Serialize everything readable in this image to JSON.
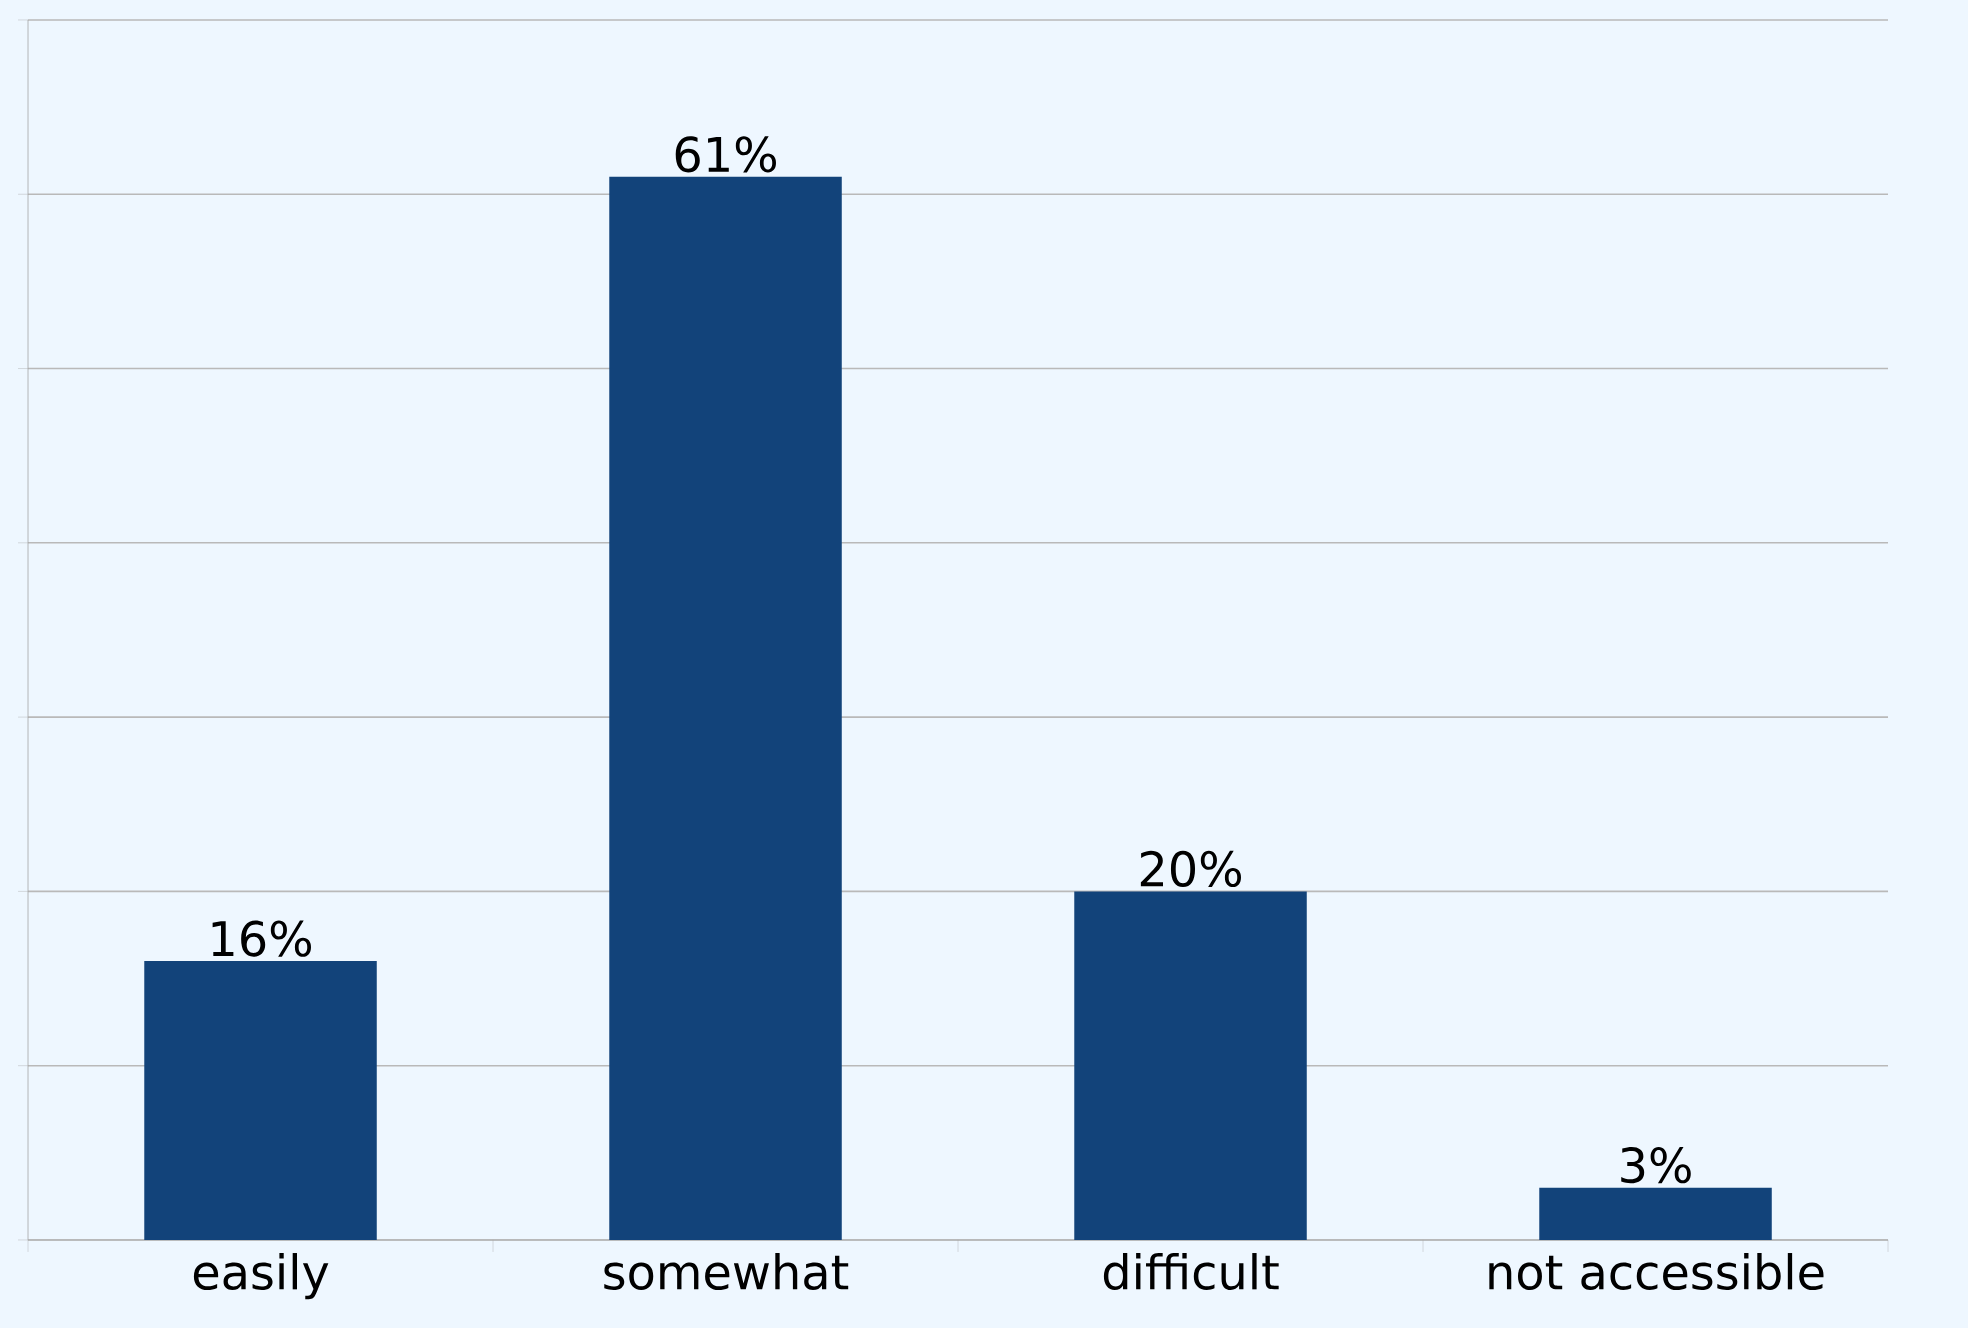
{
  "chart_data": {
    "type": "bar",
    "categories": [
      "easily",
      "somewhat",
      "difficult",
      "not accessible"
    ],
    "values": [
      16,
      61,
      20,
      3
    ],
    "value_labels": [
      "16%",
      "61%",
      "20%",
      "3%"
    ],
    "color": "#12437a",
    "ylim": [
      0,
      70
    ],
    "yticks": [
      {
        "value": 0,
        "label": null
      },
      {
        "value": 10,
        "label": null
      },
      {
        "value": 20,
        "label": null
      },
      {
        "value": 30,
        "label": null
      },
      {
        "value": 40,
        "label": null
      },
      {
        "value": 50,
        "label": null
      },
      {
        "value": 60,
        "label": null
      },
      {
        "value": 70,
        "label": null
      }
    ],
    "grid": "y",
    "tick_labels": "x"
  }
}
